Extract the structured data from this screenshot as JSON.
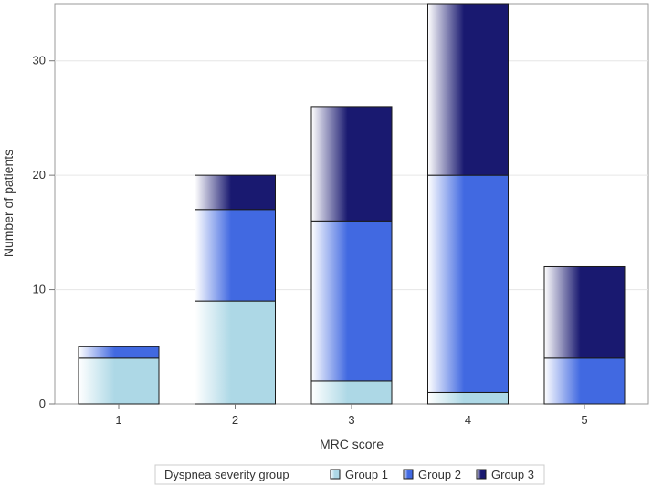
{
  "chart_data": {
    "type": "bar",
    "stacked": true,
    "categories": [
      "1",
      "2",
      "3",
      "4",
      "5"
    ],
    "series": [
      {
        "name": "Group 1",
        "color": "#add8e6",
        "values": [
          4,
          9,
          2,
          1,
          0
        ]
      },
      {
        "name": "Group 2",
        "color": "#4169e1",
        "values": [
          1,
          8,
          14,
          19,
          4
        ]
      },
      {
        "name": "Group 3",
        "color": "#191970",
        "values": [
          0,
          3,
          10,
          15,
          8
        ]
      }
    ],
    "xlabel": "MRC score",
    "ylabel": "Number of patients",
    "ylim": [
      0,
      35
    ],
    "yticks": [
      0,
      10,
      20,
      30
    ],
    "grid": true,
    "legend": {
      "title": "Dyspnea severity group",
      "placement": "bottom"
    }
  }
}
